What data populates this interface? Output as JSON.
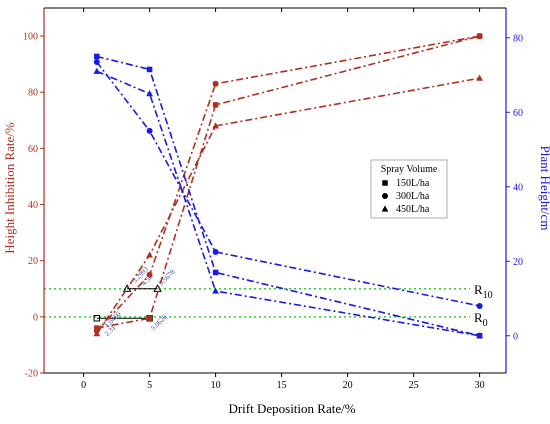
{
  "chart_data": {
    "type": "line",
    "xlabel": "Drift Deposition Rate/%",
    "ylabel_left": "Height Inhibition Rate/%",
    "ylabel_right": "Plant Height/cm",
    "xlim": [
      -3,
      32
    ],
    "ylim_left": [
      -20,
      110
    ],
    "ylim_right": [
      -10,
      88
    ],
    "x_ticks": [
      0,
      5,
      10,
      15,
      20,
      25,
      30
    ],
    "y_left_ticks": [
      -20,
      0,
      20,
      40,
      60,
      80,
      100
    ],
    "y_right_ticks": [
      0,
      20,
      40,
      60,
      80
    ],
    "legend": {
      "title": "Spray Volume",
      "position": "right-middle",
      "entries": [
        {
          "label": "150L/ha",
          "marker": "square"
        },
        {
          "label": "300L/ha",
          "marker": "circle"
        },
        {
          "label": "450L/ha",
          "marker": "triangle"
        }
      ]
    },
    "colors": {
      "inhibition": "#b03020",
      "height": "#1a1ae0",
      "reference": "#33cc33",
      "axis_left": "#b03020",
      "axis_right": "#1a1ae0"
    },
    "series_inhibition": [
      {
        "marker": "square",
        "x": [
          1,
          5,
          10,
          30
        ],
        "y": [
          -4,
          -0.5,
          75.5,
          100
        ]
      },
      {
        "marker": "circle",
        "x": [
          1,
          5,
          10,
          30
        ],
        "y": [
          -5,
          15,
          83,
          100
        ]
      },
      {
        "marker": "triangle",
        "x": [
          1,
          5,
          10,
          30
        ],
        "y": [
          -6,
          22,
          68,
          85
        ]
      }
    ],
    "series_height": [
      {
        "marker": "square",
        "x": [
          1,
          5,
          10,
          30
        ],
        "y": [
          75,
          71.5,
          17,
          0
        ]
      },
      {
        "marker": "circle",
        "x": [
          1,
          5,
          10,
          30
        ],
        "y": [
          73.5,
          55,
          22.5,
          8
        ]
      },
      {
        "marker": "triangle",
        "x": [
          1,
          5,
          10,
          30
        ],
        "y": [
          71,
          65,
          12,
          0
        ]
      }
    ],
    "reference_lines": [
      {
        "label_base": "R",
        "label_sub": "10",
        "y": 10
      },
      {
        "label_base": "R",
        "label_sub": "0",
        "y": 0
      }
    ],
    "small_labels": [
      {
        "text": "1.0466",
        "x": 1.8,
        "y": -4
      },
      {
        "text": "2.31",
        "x": 1.8,
        "y": -7
      },
      {
        "text": "3.2993",
        "x": 3.9,
        "y": 12
      },
      {
        "text": "4.56",
        "x": 4.6,
        "y": 11
      },
      {
        "text": "5.0626",
        "x": 5.3,
        "y": -5
      },
      {
        "text": "5.5678",
        "x": 5.9,
        "y": 11
      }
    ],
    "intersection_segments": [
      {
        "x1": 1.0,
        "x2": 5.0,
        "y": -0.5,
        "marker": "square"
      },
      {
        "x1": 3.3,
        "x2": 5.6,
        "y": 10,
        "marker": "triangle"
      }
    ]
  }
}
